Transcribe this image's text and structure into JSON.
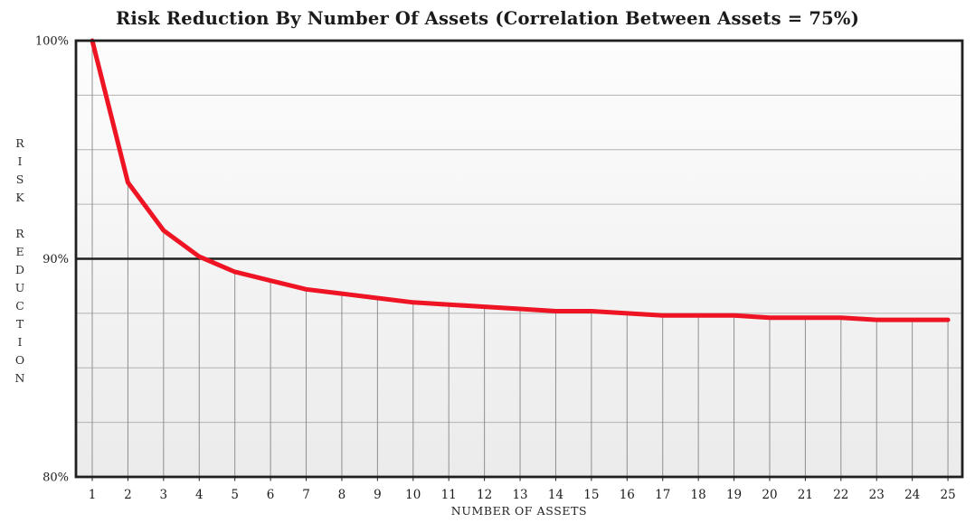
{
  "chart_data": {
    "type": "line",
    "title": "Risk Reduction By Number Of Assets (Correlation Between Assets = 75%)",
    "xlabel": "NUMBER OF ASSETS",
    "ylabel": "RISK REDUCTION",
    "x": [
      1,
      2,
      3,
      4,
      5,
      6,
      7,
      8,
      9,
      10,
      11,
      12,
      13,
      14,
      15,
      16,
      17,
      18,
      19,
      20,
      21,
      22,
      23,
      24,
      25
    ],
    "series": [
      {
        "name": "Risk Reduction",
        "values": [
          100,
          93.5,
          91.3,
          90.1,
          89.4,
          89.0,
          88.6,
          88.4,
          88.2,
          88.0,
          87.9,
          87.8,
          87.7,
          87.6,
          87.6,
          87.5,
          87.4,
          87.4,
          87.4,
          87.3,
          87.3,
          87.3,
          87.2,
          87.2,
          87.2
        ]
      }
    ],
    "ylim": [
      80,
      100
    ],
    "y_ticks": [
      {
        "value": 100,
        "label": "100%"
      },
      {
        "value": 90,
        "label": "90%"
      },
      {
        "value": 80,
        "label": "80%"
      }
    ],
    "y_gridline_step": 2.5,
    "emphasized_gridline_y": 90,
    "vertical_gridlines": "drop line from each data point down to x-axis",
    "legend": "none",
    "colors": {
      "line": "#ee1424",
      "grid": "#b2b2b2",
      "stem": "#8f8f8f",
      "axis": "#1f1f1f",
      "text": "#1c1c1c",
      "plot_bg_top": "#fdfdfd",
      "plot_bg_bottom": "#ebebeb"
    }
  }
}
